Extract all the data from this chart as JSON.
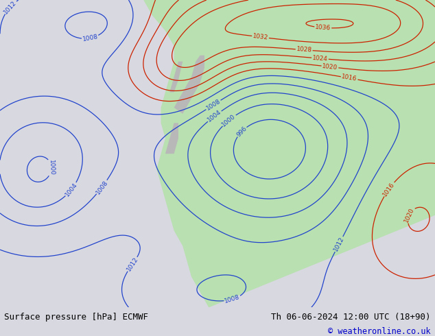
{
  "title_left": "Surface pressure [hPa] ECMWF",
  "title_right": "Th 06-06-2024 12:00 UTC (18+90)",
  "copyright": "© weatheronline.co.uk",
  "ocean_color": "#d8d8e0",
  "land_color": "#b8e0b0",
  "mountain_color": "#b8b8b8",
  "footer_bg": "#d8d8e0",
  "text_color_black": "#000000",
  "text_color_blue": "#0000cc",
  "text_color_red": "#cc0000",
  "contour_black": "#000000",
  "contour_blue": "#2244cc",
  "contour_red": "#cc2200",
  "label_fontsize": 6.5
}
